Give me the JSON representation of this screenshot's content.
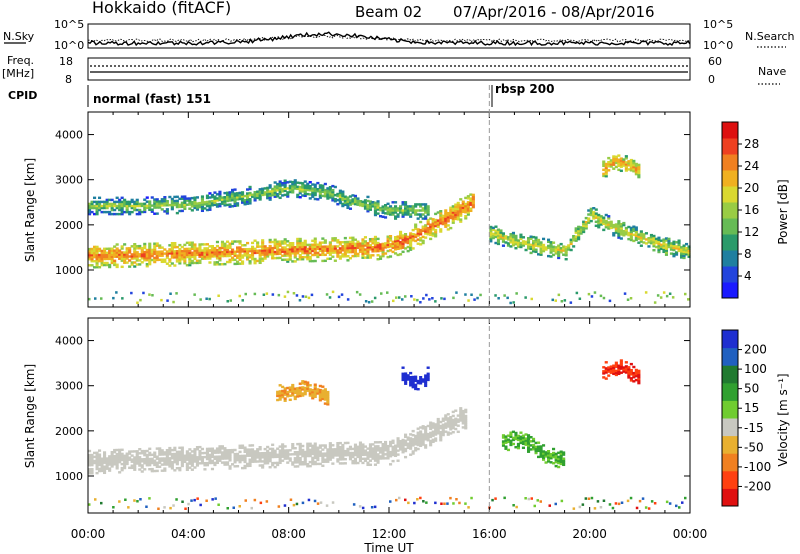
{
  "header": {
    "station": "Hokkaido (fitACF)",
    "beam": "Beam 02",
    "date_range": "07/Apr/2016 - 08/Apr/2016"
  },
  "strip": {
    "noise_label_left": "N.Sky",
    "noise_label_right": "N.Search",
    "noise_ticks_left": [
      "10^5",
      "10^0"
    ],
    "noise_ticks_right": [
      "10^5",
      "10^0"
    ],
    "freq_label": "Freq.",
    "freq_unit": "[MHz]",
    "freq_ticks": [
      "18",
      "8"
    ],
    "nave_label": "Nave",
    "nave_ticks": [
      "60",
      "0"
    ],
    "cpid_label": "CPID",
    "modes": [
      {
        "label": "normal (fast) 151",
        "start_hour": 0
      },
      {
        "label": "rbsp 200",
        "start_hour": 16
      }
    ]
  },
  "chart_data": [
    {
      "type": "heatmap",
      "title": "Power",
      "ylabel": "Slant Range [km]",
      "xlabel": "",
      "xlim_hours": [
        0,
        24
      ],
      "ylim": [
        180,
        4500
      ],
      "y_ticks": [
        1000,
        2000,
        3000,
        4000
      ],
      "colorbar": {
        "label": "Power [dB]",
        "ticks": [
          "28",
          "24",
          "20",
          "16",
          "12",
          "8",
          "4"
        ],
        "range": [
          0,
          30
        ],
        "colors": [
          "#1a1aff",
          "#2244dd",
          "#1f7fa0",
          "#2a9a6a",
          "#66bb55",
          "#99cc44",
          "#d9d830",
          "#f0b020",
          "#f08020",
          "#ee4020",
          "#dd1010"
        ]
      },
      "features": [
        {
          "name": "main band",
          "t": [
            0.0,
            2,
            4,
            6,
            8,
            10,
            11.5,
            12.5,
            13.5,
            14.5,
            15.3
          ],
          "range_km": [
            1300,
            1320,
            1350,
            1380,
            1430,
            1450,
            1480,
            1600,
            1900,
            2200,
            2500
          ],
          "power_db": 24
        },
        {
          "name": "upper band",
          "t": [
            0,
            2,
            4,
            6,
            8,
            9.5,
            10.5,
            12,
            13.5
          ],
          "range_km": [
            2400,
            2400,
            2430,
            2600,
            2800,
            2700,
            2500,
            2300,
            2300
          ],
          "power_db": 14
        },
        {
          "name": "post-16 band",
          "t": [
            16,
            17,
            18,
            19,
            20,
            21,
            22,
            23,
            24
          ],
          "range_km": [
            1800,
            1600,
            1500,
            1400,
            2200,
            1900,
            1700,
            1500,
            1400
          ],
          "power_db": 18
        },
        {
          "name": "far patch",
          "t": [
            20.5,
            21,
            21.5,
            22
          ],
          "range_km": [
            3200,
            3400,
            3300,
            3200
          ],
          "power_db": 22
        }
      ]
    },
    {
      "type": "heatmap",
      "title": "Velocity",
      "ylabel": "Slant Range [km]",
      "xlabel": "Time UT",
      "xlim_hours": [
        0,
        24
      ],
      "ylim": [
        180,
        4500
      ],
      "y_ticks": [
        1000,
        2000,
        3000,
        4000
      ],
      "x_ticks": [
        "00:00",
        "04:00",
        "08:00",
        "12:00",
        "16:00",
        "20:00",
        "00:00"
      ],
      "colorbar": {
        "label": "Velocity [m s⁻¹]",
        "ticks": [
          "200",
          "100",
          "50",
          "15",
          "-15",
          "-50",
          "-100",
          "-200"
        ],
        "colors": [
          "#1f2fd0",
          "#2060c0",
          "#207a30",
          "#30a030",
          "#70cc30",
          "#c8c8c0",
          "#e8b030",
          "#f08020",
          "#ff4010",
          "#e01010"
        ]
      },
      "features": [
        {
          "name": "ground scatter band",
          "t": [
            0,
            4,
            8,
            12,
            15
          ],
          "range_km": [
            1300,
            1380,
            1450,
            1500,
            2300
          ],
          "velocity": 0
        },
        {
          "name": "green patch",
          "t": [
            16.5,
            17,
            17.5,
            18,
            19
          ],
          "range_km": [
            1700,
            1800,
            1700,
            1500,
            1300
          ],
          "velocity": 50
        },
        {
          "name": "orange patch",
          "t": [
            7.5,
            8.5,
            9.5
          ],
          "range_km": [
            2800,
            2900,
            2750
          ],
          "velocity": -50
        },
        {
          "name": "red patch",
          "t": [
            20.5,
            21,
            21.5,
            22
          ],
          "range_km": [
            3300,
            3400,
            3300,
            3200
          ],
          "velocity": -200
        },
        {
          "name": "blue patch",
          "t": [
            12.5,
            13,
            13.5
          ],
          "range_km": [
            3200,
            3000,
            3200
          ],
          "velocity": 200
        }
      ]
    }
  ]
}
